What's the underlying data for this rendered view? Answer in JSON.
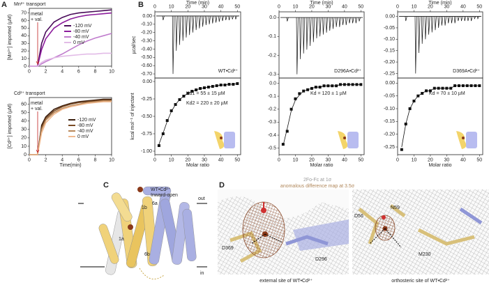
{
  "panels": [
    "A",
    "B",
    "C",
    "D"
  ],
  "chart_data": [
    {
      "type": "line",
      "title": "Mn²⁺ transport",
      "ylabel": "[Mn²⁺] imported (µM)",
      "annotations": [
        "metal",
        "+ val."
      ],
      "x": [
        0,
        0.5,
        1,
        1.5,
        2,
        3,
        4,
        5,
        6,
        7,
        8,
        9,
        10
      ],
      "xlim": [
        0,
        10
      ],
      "xticks": [
        0,
        2,
        4,
        6,
        8,
        10
      ],
      "ylim": [
        0,
        76
      ],
      "yticks": [
        0,
        10,
        20,
        30,
        40,
        50,
        60,
        70
      ],
      "series": [
        {
          "name": "-120 mV",
          "color": "#4a0b5a",
          "values": [
            0,
            0,
            0,
            30,
            45,
            58,
            64,
            68,
            70,
            71,
            72,
            73,
            74
          ]
        },
        {
          "name": "-80 mV",
          "color": "#8c1c9c",
          "values": [
            0,
            0,
            0,
            22,
            36,
            50,
            57,
            62,
            65,
            67,
            68,
            69,
            70
          ]
        },
        {
          "name": "-40 mV",
          "color": "#c07ccd",
          "values": [
            0,
            0,
            0,
            3,
            6,
            11,
            16,
            22,
            28,
            33,
            37,
            40,
            43
          ]
        },
        {
          "name": "0 mV",
          "color": "#e2bbe7",
          "values": [
            0,
            0,
            0,
            5,
            8,
            11,
            13,
            14,
            15,
            16,
            16,
            17,
            17
          ]
        }
      ]
    },
    {
      "type": "line",
      "title": "Cd²⁺ transport",
      "ylabel": "[Cd²⁺] imported (µM)",
      "xlabel": "Time(min)",
      "annotations": [
        "metal",
        "+ val."
      ],
      "x": [
        0,
        0.5,
        1,
        1.5,
        2,
        3,
        4,
        5,
        6,
        7,
        8,
        9,
        10
      ],
      "xlim": [
        0,
        10
      ],
      "xticks": [
        0,
        2,
        4,
        6,
        8,
        10
      ],
      "ylim": [
        0,
        68
      ],
      "yticks": [
        0,
        10,
        20,
        30,
        40,
        50,
        60
      ],
      "series": [
        {
          "name": "-120 mV",
          "color": "#3a1d0c",
          "values": [
            0,
            0,
            0,
            35,
            45,
            54,
            58,
            61,
            63,
            64,
            65,
            66,
            66
          ]
        },
        {
          "name": "-80 mV",
          "color": "#7a4a24",
          "values": [
            0,
            0,
            0,
            32,
            43,
            52,
            57,
            60,
            62,
            63,
            64,
            65,
            65
          ]
        },
        {
          "name": "-40 mV",
          "color": "#b88758",
          "values": [
            0,
            0,
            0,
            30,
            41,
            50,
            55,
            58,
            60,
            62,
            63,
            64,
            64
          ]
        },
        {
          "name": "0 mV",
          "color": "#f0b98f",
          "values": [
            0,
            0,
            0,
            26,
            38,
            48,
            54,
            57,
            59,
            61,
            62,
            63,
            63
          ]
        }
      ]
    },
    {
      "type": "itc",
      "label": "WT•Cd²⁺",
      "top": {
        "xlabel": "Time (min)",
        "ylabel": "µcal/sec",
        "xlim": [
          0,
          52
        ],
        "xticks": [
          0,
          10,
          20,
          30,
          40,
          50
        ],
        "ylim": [
          -0.75,
          0.05
        ],
        "yticks": [
          {
            "value": 0,
            "label": "0.00"
          },
          {
            "value": -0.1,
            "label": "-0.10"
          },
          {
            "value": -0.2,
            "label": "-0.20"
          },
          {
            "value": -0.3,
            "label": "-0.30"
          },
          {
            "value": -0.4,
            "label": "-0.40"
          },
          {
            "value": -0.5,
            "label": "-0.50"
          },
          {
            "value": -0.6,
            "label": "-0.60"
          },
          {
            "value": -0.7,
            "label": "-0.70"
          }
        ],
        "x": [
          5,
          11,
          13,
          15,
          17,
          19,
          21,
          23,
          25,
          27,
          29,
          31,
          33,
          35,
          37,
          39,
          41,
          43,
          45,
          47,
          49
        ],
        "values": [
          -0.05,
          -0.7,
          -0.42,
          -0.35,
          -0.3,
          -0.26,
          -0.23,
          -0.2,
          -0.17,
          -0.15,
          -0.13,
          -0.11,
          -0.1,
          -0.09,
          -0.08,
          -0.07,
          -0.06,
          -0.05,
          -0.05,
          -0.04,
          -0.04
        ]
      },
      "bottom": {
        "xlabel": "Molar ratio",
        "ylabel": "kcal mol⁻¹ of injectant",
        "annotations": [
          "Kd1 = 55 ± 15 µM",
          "Kd2 = 220 ± 20 µM"
        ],
        "xlim": [
          0,
          52
        ],
        "xticks": [
          0,
          10,
          20,
          30,
          40,
          50
        ],
        "ylim": [
          -1.05,
          0.05
        ],
        "yticks": [
          {
            "value": 0,
            "label": "0.00"
          },
          -0.25,
          {
            "value": -0.5,
            "label": "-0.50"
          },
          -0.75,
          {
            "value": -1,
            "label": "-1.00"
          }
        ],
        "x": [
          2.5,
          5,
          7.5,
          10,
          12.5,
          15,
          17.5,
          20,
          22.5,
          25,
          27.5,
          30,
          32.5,
          35,
          37.5,
          40,
          42.5,
          45,
          47.5,
          50
        ],
        "values": [
          -0.92,
          -0.75,
          -0.56,
          -0.42,
          -0.33,
          -0.26,
          -0.21,
          -0.17,
          -0.14,
          -0.12,
          -0.1,
          -0.09,
          -0.08,
          -0.07,
          -0.06,
          -0.05,
          -0.05,
          -0.04,
          -0.04,
          -0.03
        ],
        "fit": [
          -0.9,
          -0.74,
          -0.57,
          -0.43,
          -0.33,
          -0.26,
          -0.21,
          -0.17,
          -0.14,
          -0.12,
          -0.1,
          -0.09,
          -0.08,
          -0.07,
          -0.06,
          -0.05,
          -0.05,
          -0.04,
          -0.04,
          -0.03
        ]
      }
    },
    {
      "type": "itc",
      "label": "D296A•Cd²⁺",
      "top": {
        "xlabel": "Time (min)",
        "xlim": [
          0,
          52
        ],
        "xticks": [
          0,
          10,
          20,
          30,
          40,
          50
        ],
        "ylim": [
          -0.32,
          0.03
        ],
        "yticks": [
          {
            "value": 0,
            "label": "0.0"
          },
          -0.1,
          -0.2,
          -0.3
        ],
        "x": [
          5,
          11,
          13,
          15,
          17,
          19,
          21,
          23,
          25,
          27,
          29,
          31,
          33,
          35,
          37,
          39,
          41,
          43,
          45,
          47,
          49
        ],
        "values": [
          -0.02,
          -0.3,
          -0.22,
          -0.19,
          -0.17,
          -0.15,
          -0.13,
          -0.11,
          -0.1,
          -0.09,
          -0.08,
          -0.07,
          -0.06,
          -0.05,
          -0.05,
          -0.04,
          -0.04,
          -0.03,
          -0.03,
          -0.03,
          -0.02
        ]
      },
      "bottom": {
        "xlabel": "Molar ratio",
        "annotations": [
          "Kd = 120 ± 1 µM"
        ],
        "xlim": [
          0,
          52
        ],
        "xticks": [
          0,
          10,
          20,
          30,
          40,
          50
        ],
        "ylim": [
          -0.55,
          0.04
        ],
        "yticks": [
          {
            "value": 0,
            "label": "0.0"
          },
          -0.1,
          -0.2,
          -0.3,
          -0.4,
          -0.5
        ],
        "x": [
          2.5,
          5,
          7.5,
          10,
          12.5,
          15,
          17.5,
          20,
          22.5,
          25,
          27.5,
          30,
          32.5,
          35,
          37.5,
          40,
          42.5,
          45,
          47.5,
          50
        ],
        "values": [
          -0.47,
          -0.37,
          -0.2,
          -0.12,
          -0.08,
          -0.06,
          -0.05,
          -0.04,
          -0.03,
          -0.03,
          -0.02,
          -0.02,
          -0.02,
          -0.02,
          -0.01,
          -0.01,
          -0.01,
          -0.01,
          -0.01,
          -0.01
        ],
        "fit": [
          -0.48,
          -0.35,
          -0.21,
          -0.13,
          -0.09,
          -0.06,
          -0.05,
          -0.04,
          -0.03,
          -0.03,
          -0.02,
          -0.02,
          -0.02,
          -0.02,
          -0.01,
          -0.01,
          -0.01,
          -0.01,
          -0.01,
          -0.01
        ]
      }
    },
    {
      "type": "itc",
      "label": "D369A•Cd²⁺",
      "top": {
        "xlabel": "Time (min)",
        "xlim": [
          0,
          52
        ],
        "xticks": [
          0,
          10,
          20,
          30,
          40,
          50
        ],
        "ylim": [
          -0.27,
          0.02
        ],
        "yticks": [
          {
            "value": 0,
            "label": "0.00"
          },
          -0.05,
          {
            "value": -0.1,
            "label": "-0.10"
          },
          -0.15,
          {
            "value": -0.2,
            "label": "-0.20"
          },
          -0.25
        ],
        "x": [
          5,
          11,
          13,
          15,
          17,
          19,
          21,
          23,
          25,
          27,
          29,
          31,
          33,
          35,
          37,
          39,
          41,
          43,
          45,
          47,
          49
        ],
        "values": [
          -0.02,
          -0.25,
          -0.16,
          -0.12,
          -0.1,
          -0.08,
          -0.07,
          -0.06,
          -0.05,
          -0.04,
          -0.04,
          -0.03,
          -0.03,
          -0.03,
          -0.02,
          -0.02,
          -0.02,
          -0.02,
          -0.02,
          -0.01,
          -0.01
        ]
      },
      "bottom": {
        "xlabel": "Molar ratio",
        "annotations": [
          "Kd = 70 ± 10 µM"
        ],
        "xlim": [
          0,
          52
        ],
        "xticks": [
          0,
          10,
          20,
          30,
          40,
          50
        ],
        "ylim": [
          -0.28,
          0.02
        ],
        "yticks": [
          {
            "value": 0,
            "label": "0.00"
          },
          -0.05,
          {
            "value": -0.1,
            "label": "-0.10"
          },
          -0.15,
          {
            "value": -0.2,
            "label": "-0.20"
          },
          -0.25
        ],
        "x": [
          2.5,
          5,
          7.5,
          10,
          12.5,
          15,
          17.5,
          20,
          22.5,
          25,
          27.5,
          30,
          32.5,
          35,
          37.5,
          40,
          42.5,
          45,
          47.5,
          50
        ],
        "values": [
          -0.26,
          -0.16,
          -0.1,
          -0.07,
          -0.05,
          -0.04,
          -0.03,
          -0.03,
          -0.02,
          -0.02,
          -0.02,
          -0.02,
          -0.02,
          -0.01,
          -0.01,
          -0.01,
          -0.01,
          -0.01,
          -0.01,
          -0.01
        ],
        "fit": [
          -0.25,
          -0.16,
          -0.1,
          -0.07,
          -0.05,
          -0.04,
          -0.03,
          -0.03,
          -0.02,
          -0.02,
          -0.02,
          -0.02,
          -0.02,
          -0.01,
          -0.01,
          -0.01,
          -0.01,
          -0.01,
          -0.01,
          -0.01
        ]
      }
    }
  ],
  "structure": {
    "title": "WT•Cd²⁺",
    "subtitle": "Inward-open",
    "labels": [
      "6a",
      "1b",
      "1a",
      "6b"
    ],
    "out": "out",
    "in": "in"
  },
  "density": {
    "legend": [
      "2Fo-Fc at 1σ",
      "anomalous difference map at 3.5σ"
    ],
    "left": {
      "labels": [
        "D369",
        "D296"
      ],
      "caption": "external site of WT•Cd²⁺"
    },
    "right": {
      "labels": [
        "N59",
        "D56",
        "M230"
      ],
      "caption": "orthosteric site of WT•Cd²⁺"
    }
  }
}
